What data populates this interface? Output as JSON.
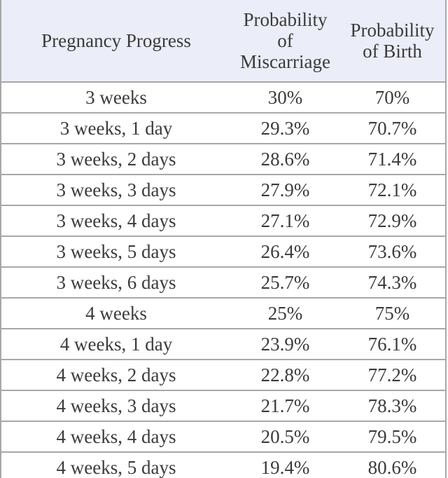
{
  "table": {
    "headers": [
      {
        "lines": [
          "Pregnancy Progress"
        ]
      },
      {
        "lines": [
          "Probability",
          "of",
          "Miscarriage"
        ]
      },
      {
        "lines": [
          "Probability",
          "of Birth"
        ]
      }
    ],
    "rows": [
      [
        "3 weeks",
        "30%",
        "70%"
      ],
      [
        "3 weeks, 1 day",
        "29.3%",
        "70.7%"
      ],
      [
        "3 weeks, 2 days",
        "28.6%",
        "71.4%"
      ],
      [
        "3 weeks, 3 days",
        "27.9%",
        "72.1%"
      ],
      [
        "3 weeks, 4 days",
        "27.1%",
        "72.9%"
      ],
      [
        "3 weeks, 5 days",
        "26.4%",
        "73.6%"
      ],
      [
        "3 weeks, 6 days",
        "25.7%",
        "74.3%"
      ],
      [
        "4 weeks",
        "25%",
        "75%"
      ],
      [
        "4 weeks, 1 day",
        "23.9%",
        "76.1%"
      ],
      [
        "4 weeks, 2 days",
        "22.8%",
        "77.2%"
      ],
      [
        "4 weeks, 3 days",
        "21.7%",
        "78.3%"
      ],
      [
        "4 weeks, 4 days",
        "20.5%",
        "79.5%"
      ],
      [
        "4 weeks, 5 days",
        "19.4%",
        "80.6%"
      ]
    ]
  },
  "colors": {
    "header_background": "#ebedf8",
    "border": "#a8a8a8",
    "text": "#3b3b3b"
  }
}
